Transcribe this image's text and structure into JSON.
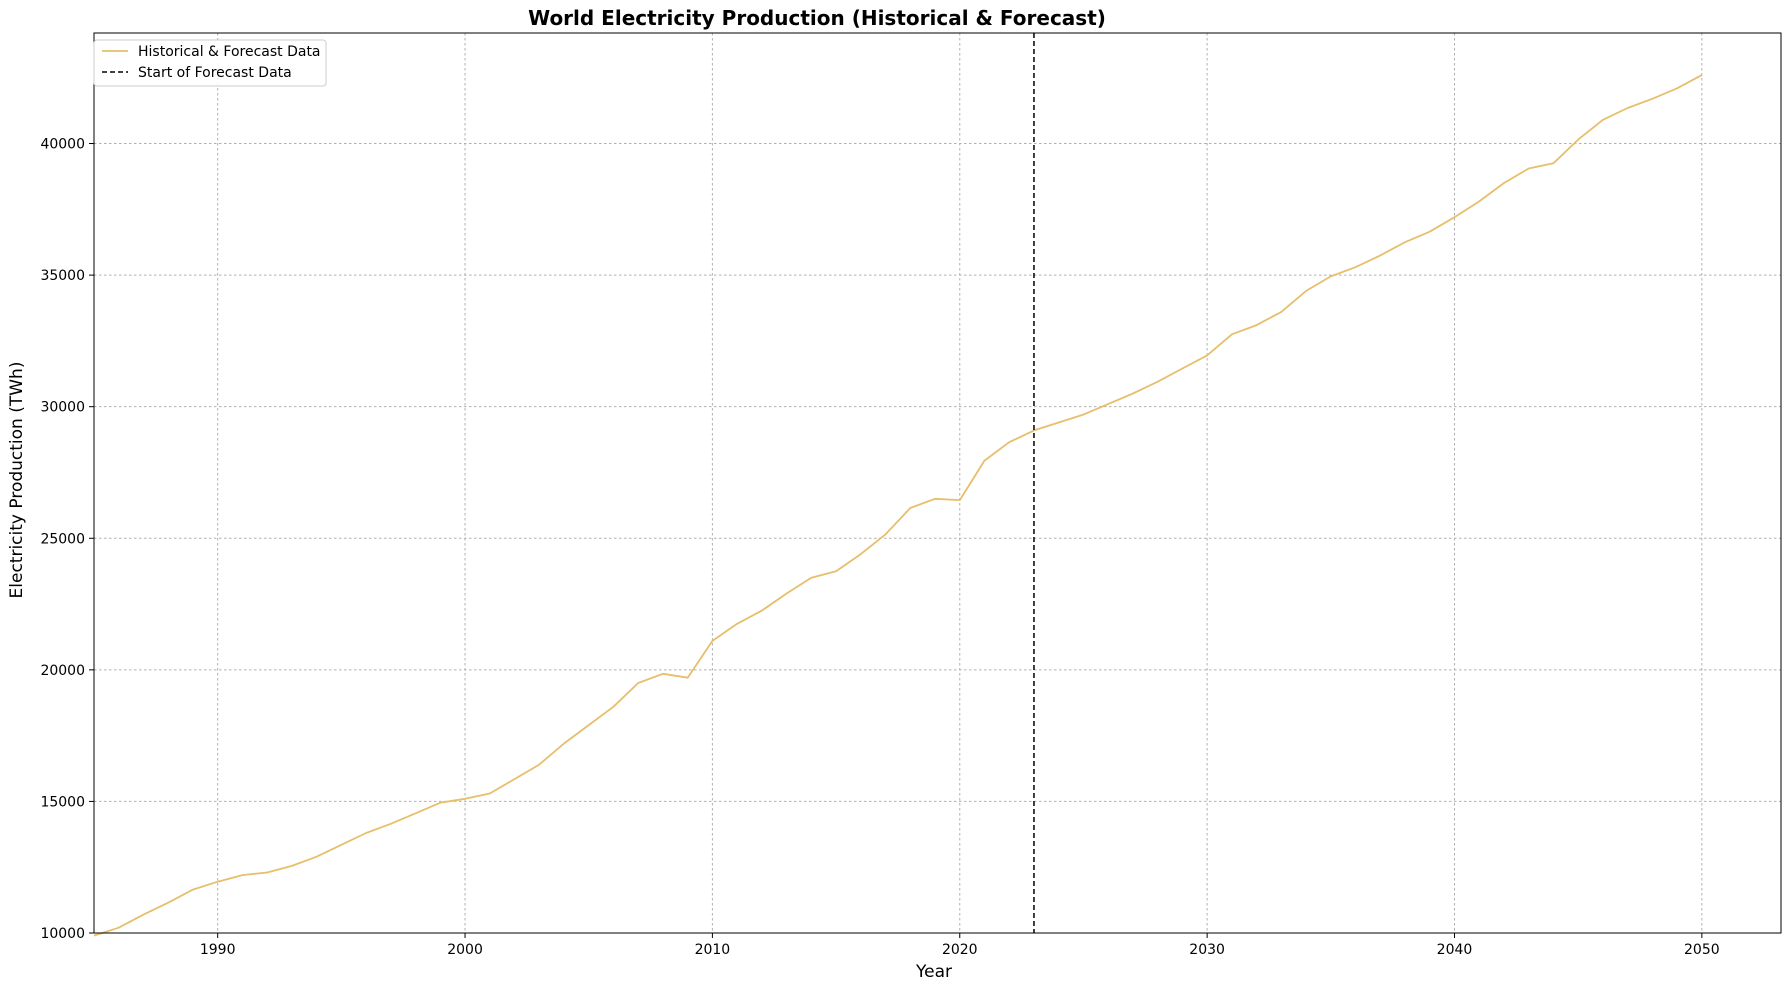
{
  "chart_data": {
    "type": "line",
    "title": "World Electricity Production (Historical & Forecast)",
    "xlabel": "Year",
    "ylabel": "Electricity Production (TWh)",
    "xlim": [
      1985,
      2053.2
    ],
    "ylim": [
      10000,
      44200
    ],
    "xticks": [
      1990,
      2000,
      2010,
      2020,
      2030,
      2040,
      2050
    ],
    "yticks": [
      10000,
      15000,
      20000,
      25000,
      30000,
      35000,
      40000
    ],
    "grid": true,
    "legend_position": "top-left",
    "forecast_start": 2023,
    "forecast_marker_label": "Start of Forecast Data",
    "forecast_marker_color": "#000000",
    "series": [
      {
        "name": "Historical & Forecast Data",
        "color": "#e6bf6a",
        "x": [
          1985,
          1986,
          1987,
          1988,
          1989,
          1990,
          1991,
          1992,
          1993,
          1994,
          1995,
          1996,
          1997,
          1998,
          1999,
          2000,
          2001,
          2002,
          2003,
          2004,
          2005,
          2006,
          2007,
          2008,
          2009,
          2010,
          2011,
          2012,
          2013,
          2014,
          2015,
          2016,
          2017,
          2018,
          2019,
          2020,
          2021,
          2022,
          2023,
          2024,
          2025,
          2026,
          2027,
          2028,
          2029,
          2030,
          2031,
          2032,
          2033,
          2034,
          2035,
          2036,
          2037,
          2038,
          2039,
          2040,
          2041,
          2042,
          2043,
          2044,
          2045,
          2046,
          2047,
          2048,
          2049,
          2050
        ],
        "values": [
          9900,
          10200,
          10700,
          11150,
          11650,
          11950,
          12200,
          12300,
          12550,
          12900,
          13350,
          13800,
          14150,
          14550,
          14950,
          15100,
          15300,
          15850,
          16400,
          17200,
          17900,
          18600,
          19500,
          19850,
          19700,
          21100,
          21750,
          22250,
          22900,
          23500,
          23750,
          24400,
          25150,
          26150,
          26500,
          26450,
          27950,
          28650,
          29100,
          29400,
          29700,
          30100,
          30500,
          30950,
          31450,
          31950,
          32750,
          33100,
          33600,
          34400,
          34950,
          35300,
          35750,
          36250,
          36650,
          37200,
          37800,
          38500,
          39050,
          39250,
          40150,
          40900,
          41350,
          41700,
          42100,
          42600
        ]
      }
    ]
  }
}
